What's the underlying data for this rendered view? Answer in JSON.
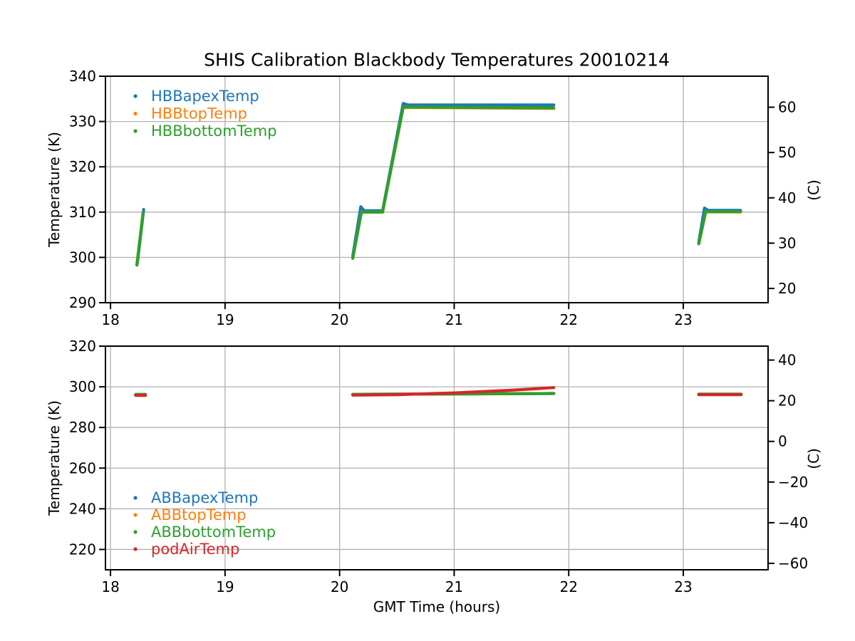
{
  "figure": {
    "title": "SHIS Calibration Blackbody Temperatures 20010214",
    "background_color": "#ffffff",
    "grid_color": "#b0b0b0",
    "spine_color": "#000000",
    "text_color": "#000000"
  },
  "chart_data": [
    {
      "type": "line",
      "title": "SHIS Calibration Blackbody Temperatures 20010214",
      "xlabel": "",
      "ylabel_left": "Temperature (K)",
      "ylabel_right": "(C)",
      "xlim": [
        17.956,
        23.74
      ],
      "ylim": [
        290,
        340
      ],
      "xticks": [
        18,
        19,
        20,
        21,
        22,
        23
      ],
      "yticks_left": [
        290,
        300,
        310,
        320,
        330,
        340
      ],
      "yticks_right_celsius": [
        20,
        30,
        40,
        50,
        60
      ],
      "celsius_offset_kelvin": 273.15,
      "grid": true,
      "legend_location": "upper left",
      "series": [
        {
          "name": "HBBapexTemp",
          "color": "#1f77b4",
          "segments": [
            [
              [
                18.235,
                298.8
              ],
              [
                18.29,
                310.6
              ]
            ],
            [
              [
                20.115,
                300.3
              ],
              [
                20.185,
                311.2
              ],
              [
                20.215,
                310.3
              ],
              [
                20.375,
                310.3
              ],
              [
                20.555,
                334.0
              ],
              [
                20.6,
                333.65
              ],
              [
                21.87,
                333.65
              ]
            ],
            [
              [
                23.135,
                303.3
              ],
              [
                23.185,
                310.9
              ],
              [
                23.215,
                310.4
              ],
              [
                23.5,
                310.4
              ]
            ]
          ]
        },
        {
          "name": "HBBtopTemp",
          "color": "#ff7f0e",
          "segments": [
            [
              [
                18.23,
                298.3
              ],
              [
                18.285,
                309.9
              ]
            ],
            [
              [
                20.115,
                299.8
              ],
              [
                20.19,
                310.0
              ],
              [
                20.375,
                310.0
              ],
              [
                20.555,
                333.1
              ],
              [
                21.87,
                332.9
              ]
            ],
            [
              [
                23.135,
                303.0
              ],
              [
                23.195,
                310.05
              ],
              [
                23.5,
                310.05
              ]
            ]
          ]
        },
        {
          "name": "HBBbottomTemp",
          "color": "#2ca02c",
          "segments": [
            [
              [
                18.23,
                298.3
              ],
              [
                18.285,
                309.9
              ]
            ],
            [
              [
                20.115,
                299.8
              ],
              [
                20.19,
                310.0
              ],
              [
                20.375,
                310.0
              ],
              [
                20.555,
                333.2
              ],
              [
                21.87,
                333.0
              ]
            ],
            [
              [
                23.135,
                303.0
              ],
              [
                23.195,
                310.1
              ],
              [
                23.5,
                310.1
              ]
            ]
          ]
        }
      ]
    },
    {
      "type": "line",
      "title": "",
      "xlabel": "GMT Time (hours)",
      "ylabel_left": "Temperature (K)",
      "ylabel_right": "(C)",
      "xlim": [
        17.956,
        23.74
      ],
      "ylim": [
        210,
        320
      ],
      "xticks": [
        18,
        19,
        20,
        21,
        22,
        23
      ],
      "yticks_left": [
        220,
        240,
        260,
        280,
        300,
        320
      ],
      "yticks_right_celsius": [
        -60,
        -40,
        -20,
        0,
        20,
        40
      ],
      "celsius_offset_kelvin": 273.15,
      "grid": true,
      "legend_location": "lower left",
      "series": [
        {
          "name": "ABBapexTemp",
          "color": "#1f77b4",
          "segments": [
            [
              [
                18.22,
                296.2
              ],
              [
                18.305,
                296.2
              ]
            ],
            [
              [
                20.115,
                296.3
              ],
              [
                21.0,
                296.5
              ],
              [
                21.87,
                296.7
              ]
            ],
            [
              [
                23.135,
                296.35
              ],
              [
                23.505,
                296.35
              ]
            ]
          ]
        },
        {
          "name": "ABBtopTemp",
          "color": "#ff7f0e",
          "segments": [
            [
              [
                18.22,
                296.2
              ],
              [
                18.305,
                296.2
              ]
            ],
            [
              [
                20.115,
                296.3
              ],
              [
                21.0,
                296.5
              ],
              [
                21.87,
                296.7
              ]
            ],
            [
              [
                23.135,
                296.35
              ],
              [
                23.505,
                296.35
              ]
            ]
          ]
        },
        {
          "name": "ABBbottomTemp",
          "color": "#2ca02c",
          "segments": [
            [
              [
                18.22,
                296.2
              ],
              [
                18.305,
                296.2
              ]
            ],
            [
              [
                20.115,
                296.3
              ],
              [
                21.0,
                296.5
              ],
              [
                21.87,
                296.7
              ]
            ],
            [
              [
                23.135,
                296.35
              ],
              [
                23.505,
                296.35
              ]
            ]
          ]
        },
        {
          "name": "podAirTemp",
          "color": "#d62728",
          "segments": [
            [
              [
                18.22,
                295.8
              ],
              [
                18.305,
                295.8
              ]
            ],
            [
              [
                20.115,
                295.9
              ],
              [
                20.5,
                296.15
              ],
              [
                21.0,
                297.0
              ],
              [
                21.5,
                298.3
              ],
              [
                21.87,
                299.6
              ]
            ],
            [
              [
                23.135,
                296.15
              ],
              [
                23.505,
                296.15
              ]
            ]
          ]
        }
      ]
    }
  ]
}
